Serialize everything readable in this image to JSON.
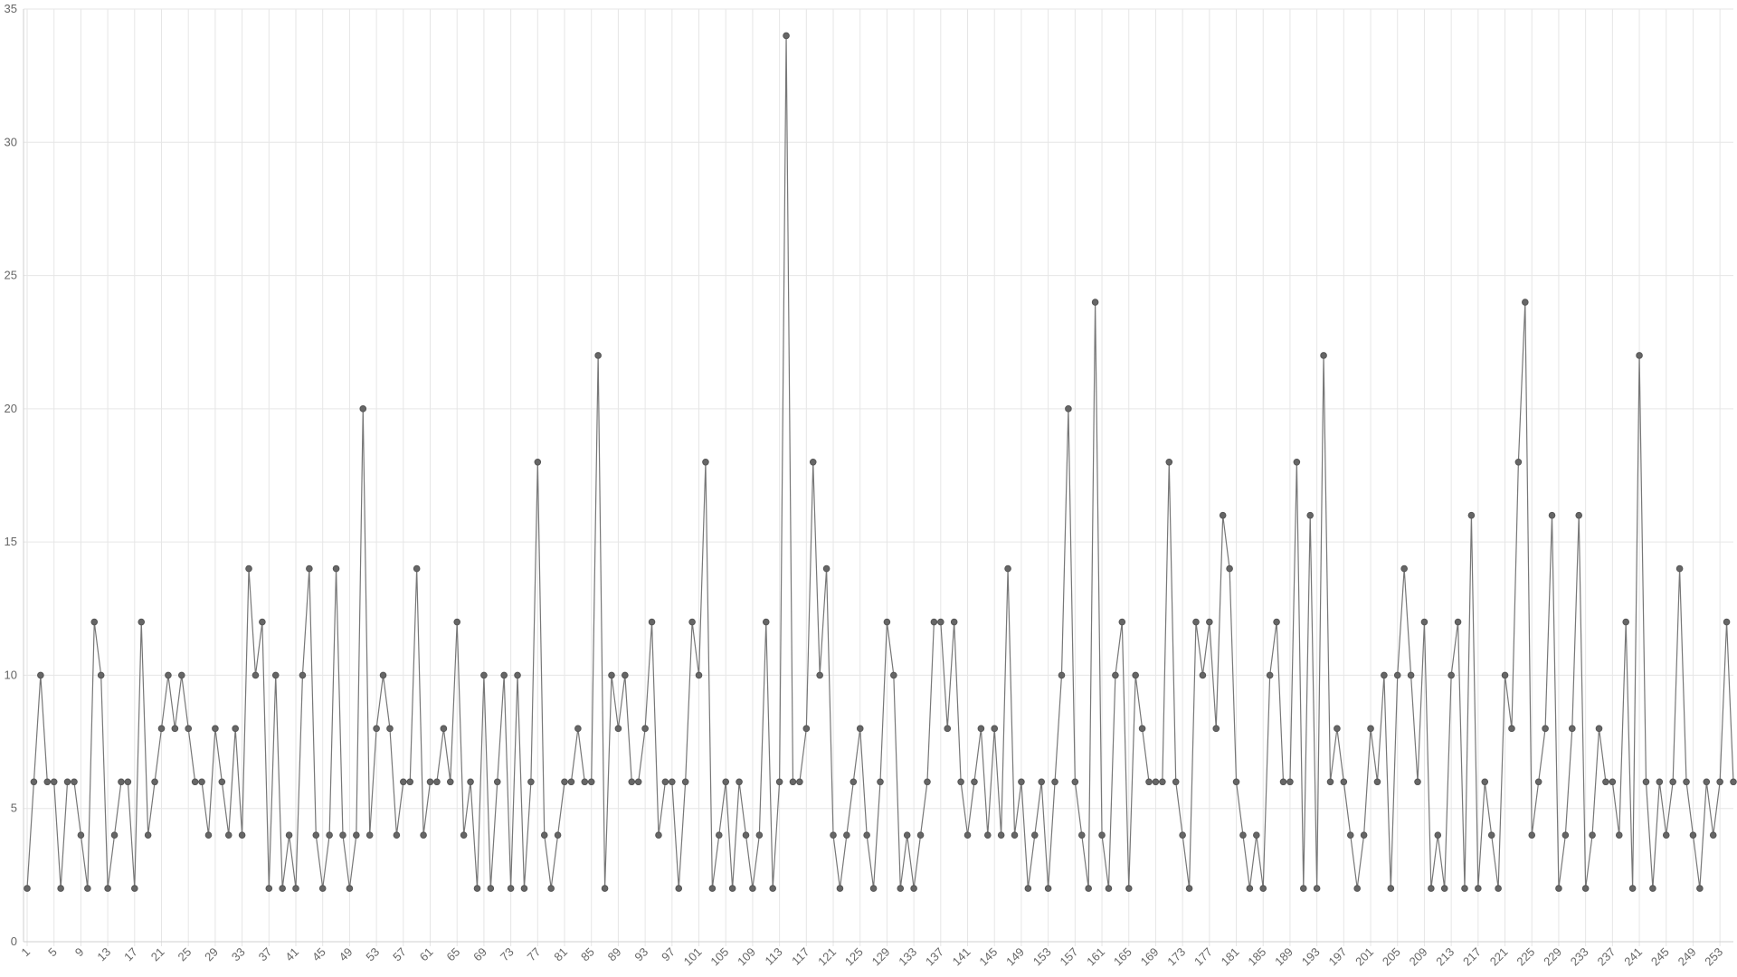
{
  "chart_data": {
    "type": "line",
    "categories": [
      "1",
      null,
      null,
      null,
      "5",
      null,
      null,
      null,
      "9",
      null,
      null,
      null,
      "13",
      null,
      null,
      null,
      "17",
      null,
      null,
      null,
      "21",
      null,
      null,
      null,
      "25",
      null,
      null,
      null,
      "29",
      null,
      null,
      null,
      "33",
      null,
      null,
      null,
      "37",
      null,
      null,
      null,
      "41",
      null,
      null,
      null,
      "45",
      null,
      null,
      null,
      "49",
      null,
      null,
      null,
      "53",
      null,
      null,
      null,
      "57",
      null,
      null,
      null,
      "61",
      null,
      null,
      null,
      "65",
      null,
      null,
      null,
      "69",
      null,
      null,
      null,
      "73",
      null,
      null,
      null,
      "77",
      null,
      null,
      null,
      "81",
      null,
      null,
      null,
      "85",
      null,
      null,
      null,
      "89",
      null,
      null,
      null,
      "93",
      null,
      null,
      null,
      "97",
      null,
      null,
      null,
      "101",
      null,
      null,
      null,
      "105",
      null,
      null,
      null,
      "109",
      null,
      null,
      null,
      "113",
      null,
      null,
      null,
      "117",
      null,
      null,
      null,
      "121",
      null,
      null,
      null,
      "125",
      null,
      null,
      null,
      "129",
      null,
      null,
      null,
      "133",
      null,
      null,
      null,
      "137",
      null,
      null,
      null,
      "141",
      null,
      null,
      null,
      "145",
      null,
      null,
      null,
      "149",
      null,
      null,
      null,
      "153",
      null,
      null,
      null,
      "157",
      null,
      null,
      null,
      "161",
      null,
      null,
      null,
      "165",
      null,
      null,
      null,
      "169",
      null,
      null,
      null,
      "173",
      null,
      null,
      null,
      "177",
      null,
      null,
      null,
      "181",
      null,
      null,
      null,
      "185",
      null,
      null,
      null,
      "189",
      null,
      null,
      null,
      "193",
      null,
      null,
      null,
      "197",
      null,
      null,
      null,
      "201",
      null,
      null,
      null,
      "205",
      null,
      null,
      null,
      "209",
      null,
      null,
      null,
      "213",
      null,
      null,
      null,
      "217",
      null,
      null,
      null,
      "221",
      null,
      null,
      null,
      "225",
      null,
      null,
      null,
      "229",
      null,
      null,
      null,
      "233",
      null,
      null,
      null,
      "237",
      null,
      null,
      null,
      "241",
      null,
      null,
      null,
      "245",
      null,
      null,
      null,
      "249",
      null,
      null,
      null,
      "253",
      null,
      null
    ],
    "values": [
      2,
      6,
      10,
      6,
      6,
      2,
      6,
      6,
      4,
      2,
      12,
      10,
      2,
      4,
      6,
      6,
      2,
      12,
      4,
      6,
      8,
      10,
      8,
      10,
      8,
      6,
      6,
      4,
      8,
      6,
      4,
      8,
      4,
      14,
      10,
      12,
      2,
      10,
      2,
      4,
      2,
      10,
      14,
      4,
      2,
      4,
      14,
      4,
      2,
      4,
      20,
      4,
      8,
      10,
      8,
      4,
      6,
      6,
      14,
      4,
      6,
      6,
      8,
      6,
      12,
      4,
      6,
      2,
      10,
      2,
      6,
      10,
      2,
      10,
      2,
      6,
      18,
      4,
      2,
      4,
      6,
      6,
      8,
      6,
      6,
      22,
      2,
      10,
      8,
      10,
      6,
      6,
      8,
      12,
      4,
      6,
      6,
      2,
      6,
      12,
      10,
      18,
      2,
      4,
      6,
      2,
      6,
      4,
      2,
      4,
      12,
      2,
      6,
      34,
      6,
      6,
      8,
      18,
      10,
      14,
      4,
      2,
      4,
      6,
      8,
      4,
      2,
      6,
      12,
      10,
      2,
      4,
      2,
      4,
      6,
      12,
      12,
      8,
      12,
      6,
      4,
      6,
      8,
      4,
      8,
      4,
      14,
      4,
      6,
      2,
      4,
      6,
      2,
      6,
      10,
      20,
      6,
      4,
      2,
      24,
      4,
      2,
      10,
      12,
      2,
      10,
      8,
      6,
      6,
      6,
      18,
      6,
      4,
      2,
      12,
      10,
      12,
      8,
      16,
      14,
      6,
      4,
      2,
      4,
      2,
      10,
      12,
      6,
      6,
      18,
      2,
      16,
      2,
      22,
      6,
      8,
      6,
      4,
      2,
      4,
      8,
      6,
      10,
      2,
      10,
      14,
      10,
      6,
      12,
      2,
      4,
      2,
      10,
      12,
      2,
      16,
      2,
      6,
      4,
      2,
      10,
      8,
      18,
      24,
      4,
      6,
      8,
      16,
      2,
      4,
      8,
      16,
      2,
      4,
      8,
      6,
      6,
      4,
      12,
      2,
      22,
      6,
      2,
      6,
      4,
      6,
      14,
      6,
      4,
      2,
      6,
      4,
      6,
      12,
      6
    ],
    "color": "#777777",
    "ylim": [
      0,
      35
    ],
    "yticks": [
      0,
      5,
      10,
      15,
      20,
      25,
      30,
      35
    ],
    "grid": true
  }
}
